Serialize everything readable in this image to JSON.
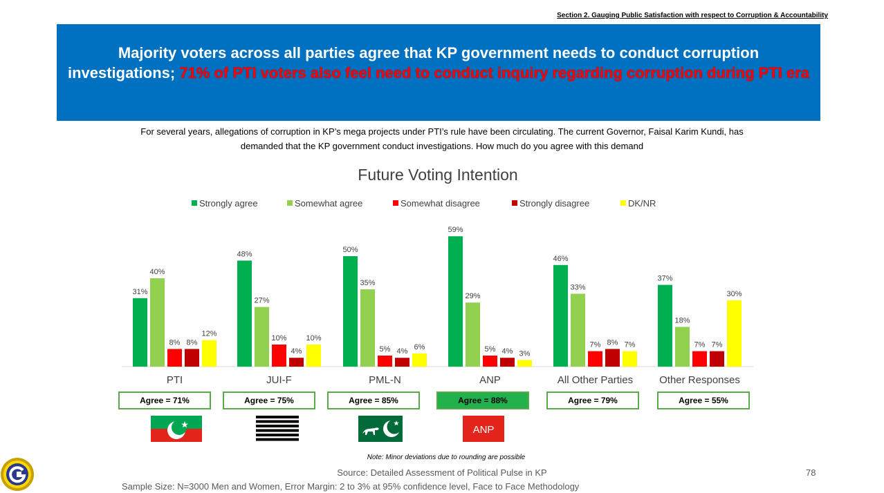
{
  "header": {
    "section_title": "Section 2. Gauging Public Satisfaction with respect to Corruption & Accountability",
    "banner_line1": "Majority voters across all parties agree that KP government needs to conduct corruption",
    "banner_line2_prefix": "investigations;",
    "banner_highlight": "71% of PTI voters also feel need to conduct inquiry regarding corruption during PTI era"
  },
  "question": {
    "line1": "For several years, allegations of corruption in KP’s mega projects under PTI’s rule have been circulating. The current Governor, Faisal Karim Kundi,  has",
    "line2": "demanded that the KP government conduct investigations. How much do you agree with this demand"
  },
  "chart_data": {
    "type": "bar",
    "title": "Future Voting Intention",
    "categories": [
      "PTI",
      "JUI-F",
      "PML-N",
      "ANP",
      "All Other Parties",
      "Other Responses"
    ],
    "series": [
      {
        "name": "Strongly agree",
        "color": "#00b050",
        "values": [
          31,
          48,
          50,
          59,
          46,
          37
        ]
      },
      {
        "name": "Somewhat agree",
        "color": "#92d050",
        "values": [
          40,
          27,
          35,
          29,
          33,
          18
        ]
      },
      {
        "name": "Somewhat disagree",
        "color": "#ff0000",
        "values": [
          8,
          10,
          5,
          5,
          7,
          7
        ]
      },
      {
        "name": "Strongly disagree",
        "color": "#c00000",
        "values": [
          8,
          4,
          4,
          4,
          8,
          7
        ]
      },
      {
        "name": "DK/NR",
        "color": "#ffff00",
        "values": [
          12,
          10,
          6,
          3,
          7,
          30
        ]
      }
    ],
    "value_suffix": "%",
    "legend_position": "top",
    "ylim": [
      0,
      60
    ],
    "grid": false
  },
  "agree_summary": [
    {
      "label": "Agree = 71%",
      "highlight": false
    },
    {
      "label": "Agree = 75%",
      "highlight": false
    },
    {
      "label": "Agree = 85%",
      "highlight": false
    },
    {
      "label": "Agree = 88%",
      "highlight": true
    },
    {
      "label": "Agree = 79%",
      "highlight": false
    },
    {
      "label": "Agree = 55%",
      "highlight": false
    }
  ],
  "party_logos": {
    "anp_text": "ANP"
  },
  "footer": {
    "note": "Note: Minor deviations due to rounding are possible",
    "source": "Source: Detailed Assessment of Political Pulse in KP",
    "page_number": "78",
    "sample": "Sample Size: N=3000 Men and Women, Error Margin: 2 to 3% at 95% confidence level, Face to Face Methodology"
  }
}
